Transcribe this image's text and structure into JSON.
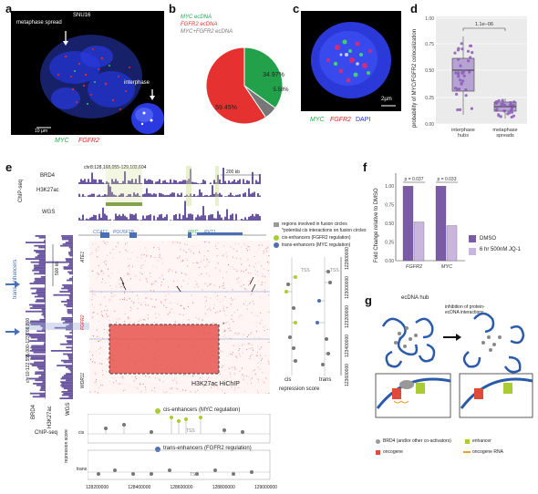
{
  "panels": {
    "a": {
      "letter": "a",
      "cell_line": "SNU16",
      "metaphase_label": "metaphase spread",
      "interphase_label": "interphase",
      "scalebar": "10 µm",
      "legend": [
        "MYC",
        "FGFR2"
      ],
      "colors": {
        "MYC": "#22aa44",
        "FGFR2": "#dd2222",
        "DAPI": "#2233cc"
      }
    },
    "b": {
      "letter": "b",
      "legend": [
        "MYC ecDNA",
        "FGFR2 ecDNA",
        "MYC+FGFR2 ecDNA"
      ],
      "colors": [
        "#22a04a",
        "#e5312f",
        "#777777"
      ]
    },
    "c": {
      "letter": "c",
      "scalebar": "2µm",
      "legend": [
        "MYC",
        "FGFR2",
        "DAPI"
      ]
    },
    "d": {
      "letter": "d",
      "ylabel": "probability of MYC/FGFR2 colocalization",
      "pvalue": "1.1e−06",
      "yticks": [
        "0.00",
        "0.25",
        "0.50",
        "0.75",
        "1.00"
      ]
    },
    "e": {
      "letter": "e",
      "coords_top": "chr8:128,168,055-129,102,604",
      "scale_top": "200 kb",
      "scale_side": "500 kb",
      "coords_side": "chr10:122,555,000-123,766,800",
      "track_brd4": "BRD4",
      "track_h3k27ac": "H3K27ac",
      "track_wgs": "WGS",
      "chipseq": "ChIP-seq",
      "genes_top": [
        "CCAT1",
        "POU5F1B",
        "MYC",
        "PVT1"
      ],
      "genes_side": [
        "ATE1",
        "FGFR2",
        "WDR11"
      ],
      "trans_enhancers_label": "trans-enhancers",
      "matrix_label": "H3K27ac HiChIP",
      "legend_regions": "regions involved in fusion circles",
      "legend_potential": "*potential cis interactions on fusion circles",
      "legend_cis": "cis-enhancers (FGFR2 regulation)",
      "legend_trans": "trans-enhancers (MYC regulation)",
      "bottom_cis_legend": "cis-enhancers (MYC regulation)",
      "bottom_trans_legend": "trans-enhancers (FGFR2 regulation)",
      "tss": "TSS",
      "repression_score": "repression score",
      "cis": "cis",
      "trans": "trans",
      "xticks": [
        "128200000",
        "128400000",
        "128600000",
        "128800000",
        "129000000"
      ],
      "yticks_right": [
        "122800000",
        "123000000",
        "123200000",
        "123400000",
        "123600000"
      ]
    },
    "f": {
      "letter": "f",
      "ylabel": "Fold Change relative to DMSO",
      "pvalues": [
        "p = 0.037",
        "p = 0.033"
      ],
      "legend": [
        "DMSO",
        "6 hr 500nM JQ-1"
      ],
      "colors": [
        "#7b5aa6",
        "#c9b5e0"
      ]
    },
    "g": {
      "letter": "g",
      "hub_label": "ecDNA hub",
      "inhibition_label": "inhibition of protein-ecDNA interactions",
      "legend": [
        "BRD4 (and/or other co-activators)",
        "oncogene",
        "enhancer",
        "oncogene RNA"
      ]
    }
  },
  "chart_data": [
    {
      "type": "pie",
      "categories": [
        "MYC ecDNA",
        "FGFR2 ecDNA",
        "MYC+FGFR2 ecDNA"
      ],
      "values": [
        34.97,
        59.45,
        5.58
      ],
      "labels": [
        "34.97%",
        "59.45%",
        "5.58%"
      ]
    },
    {
      "type": "bar",
      "categories": [
        "FGFR2",
        "MYC"
      ],
      "series": [
        {
          "name": "DMSO",
          "values": [
            1.0,
            1.0
          ]
        },
        {
          "name": "6 hr 500nM JQ-1",
          "values": [
            0.52,
            0.47
          ]
        }
      ],
      "ylabel": "Fold Change relative to DMSO",
      "ylim": [
        0,
        1.1
      ],
      "yticks": [
        "0.00",
        "0.25",
        "0.50",
        "0.75",
        "1.00"
      ]
    }
  ]
}
